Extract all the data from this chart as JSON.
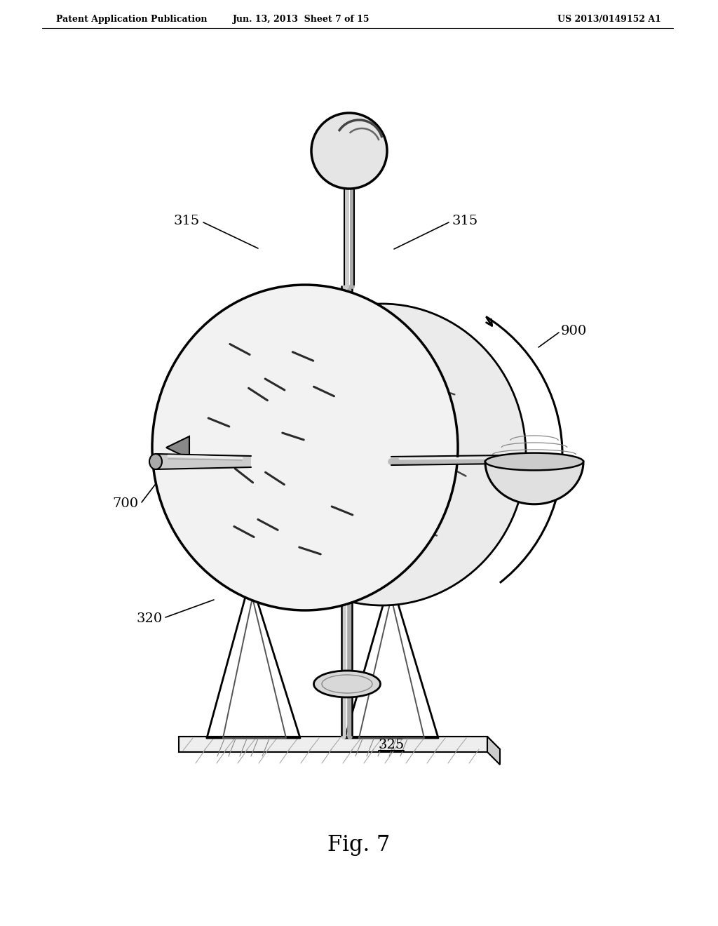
{
  "header_left": "Patent Application Publication",
  "header_mid": "Jun. 13, 2013  Sheet 7 of 15",
  "header_right": "US 2013/0149152 A1",
  "fig_label": "Fig. 7",
  "label_315L": "315",
  "label_315R": "315",
  "label_700": "700",
  "label_320": "320",
  "label_325": "325",
  "label_900": "900",
  "bg": "#ffffff",
  "ink": "#000000"
}
